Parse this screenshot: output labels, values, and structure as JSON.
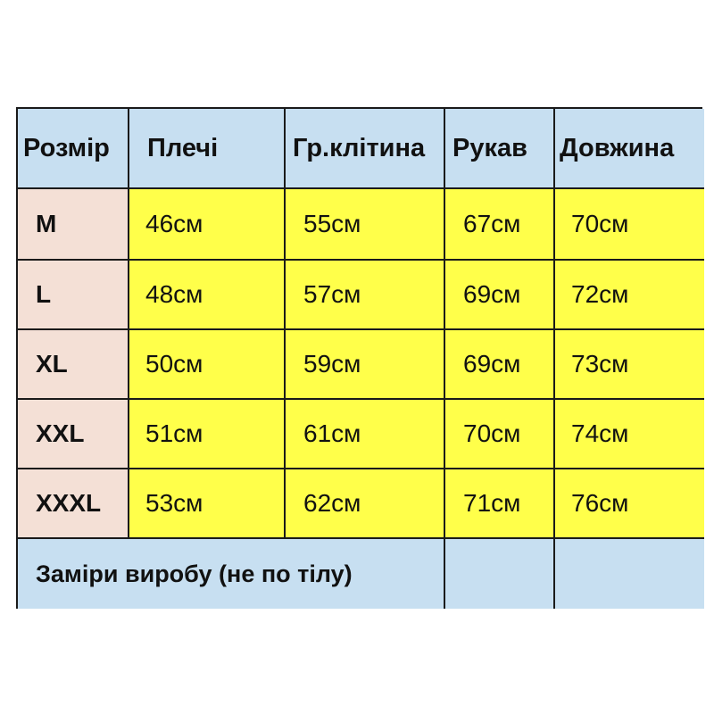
{
  "headers": [
    "Розмір",
    "Плечі",
    "Гр.клітина",
    "Рукав",
    "Довжина"
  ],
  "rows": [
    [
      "M",
      "46см",
      "55см",
      "67см",
      "70см"
    ],
    [
      "L",
      "48см",
      "57см",
      "69см",
      "72см"
    ],
    [
      "XL",
      "50см",
      "59см",
      "69см",
      "73см"
    ],
    [
      "XXL",
      "51см",
      "61см",
      "70см",
      "74см"
    ],
    [
      "XXXL",
      "53см",
      "62см",
      "71см",
      "76см"
    ]
  ],
  "footer": "Заміри виробу (не по тілу)",
  "colors": {
    "header": "#c7dff1",
    "size_column": "#f4e0d6",
    "values": "#ffff4a"
  }
}
